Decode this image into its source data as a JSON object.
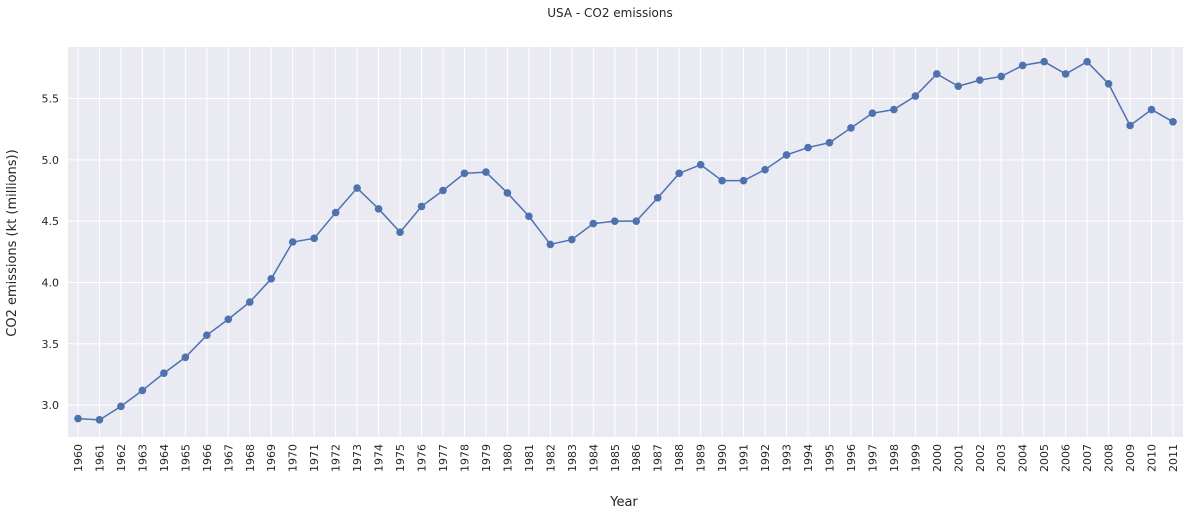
{
  "chart_data": {
    "type": "line",
    "title": "USA - CO2 emissions",
    "xlabel": "Year",
    "ylabel": "CO2 emissions (kt (millions))",
    "categories": [
      "1960",
      "1961",
      "1962",
      "1963",
      "1964",
      "1965",
      "1966",
      "1967",
      "1968",
      "1969",
      "1970",
      "1971",
      "1972",
      "1973",
      "1974",
      "1975",
      "1976",
      "1977",
      "1978",
      "1979",
      "1980",
      "1981",
      "1982",
      "1983",
      "1984",
      "1985",
      "1986",
      "1987",
      "1988",
      "1989",
      "1990",
      "1991",
      "1992",
      "1993",
      "1994",
      "1995",
      "1996",
      "1997",
      "1998",
      "1999",
      "2000",
      "2001",
      "2002",
      "2003",
      "2004",
      "2005",
      "2006",
      "2007",
      "2008",
      "2009",
      "2010",
      "2011"
    ],
    "series": [
      {
        "values": [
          2.89,
          2.88,
          2.99,
          3.12,
          3.26,
          3.39,
          3.57,
          3.7,
          3.84,
          4.03,
          4.33,
          4.36,
          4.57,
          4.77,
          4.6,
          4.41,
          4.62,
          4.75,
          4.89,
          4.9,
          4.73,
          4.54,
          4.31,
          4.35,
          4.48,
          4.5,
          4.5,
          4.69,
          4.89,
          4.96,
          4.83,
          4.83,
          4.92,
          5.04,
          5.1,
          5.14,
          5.26,
          5.38,
          5.41,
          5.52,
          5.7,
          5.6,
          5.65,
          5.68,
          5.77,
          5.8,
          5.7,
          5.8,
          5.62,
          5.28,
          5.41,
          5.31
        ]
      }
    ],
    "yticks": [
      "3.0",
      "3.5",
      "4.0",
      "4.5",
      "5.0",
      "5.5"
    ],
    "ylim": [
      2.74,
      5.92
    ],
    "grid": true,
    "colors": {
      "line": "#4c72b0",
      "background": "#eaeaf2",
      "grid": "#ffffff"
    }
  }
}
